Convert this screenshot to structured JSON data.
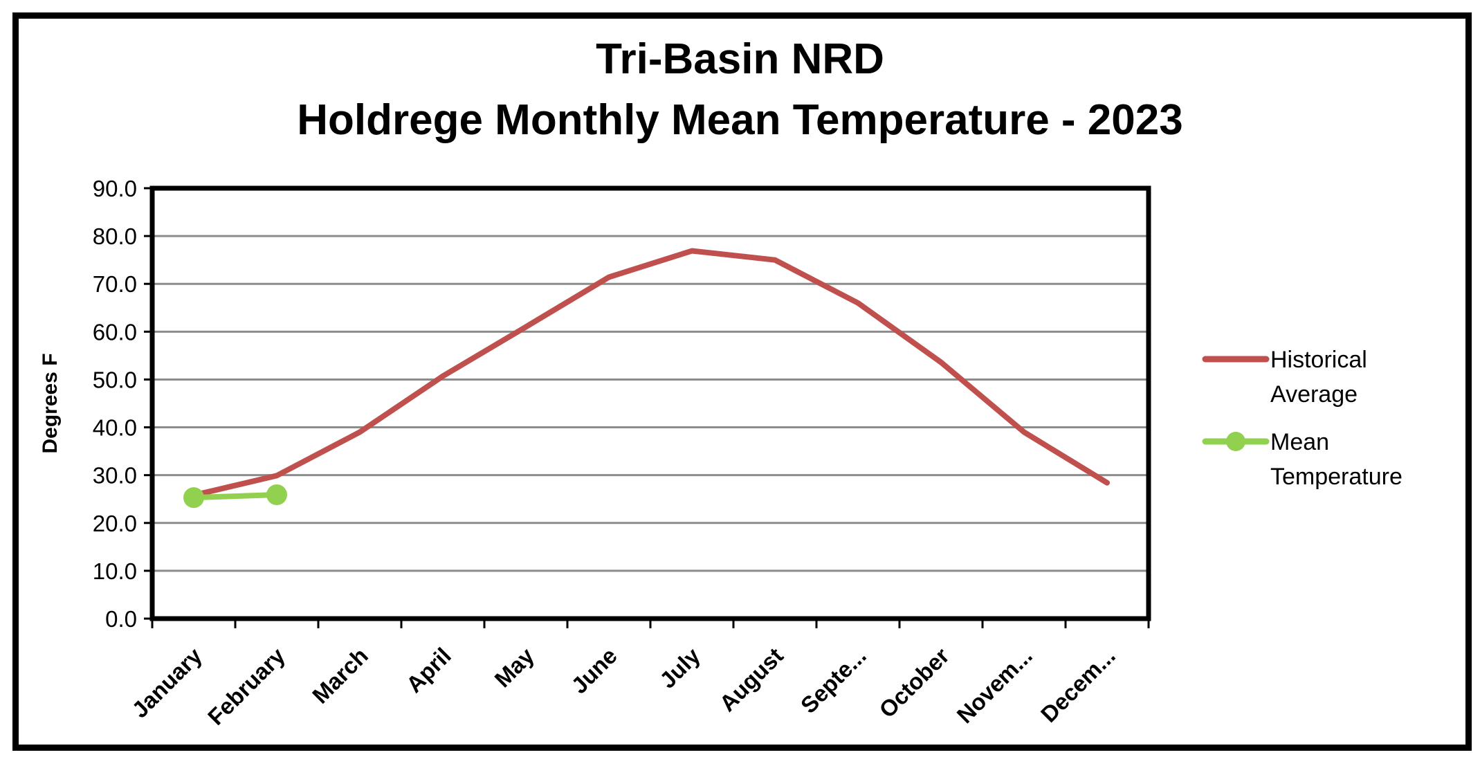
{
  "chart_data": {
    "type": "line",
    "title_line1": "Tri-Basin NRD",
    "title_line2": "Holdrege Monthly Mean Temperature - 2023",
    "xlabel": "",
    "ylabel": "Degrees F",
    "ylim": [
      0,
      90
    ],
    "yticks": [
      "0.0",
      "10.0",
      "20.0",
      "30.0",
      "40.0",
      "50.0",
      "60.0",
      "70.0",
      "80.0",
      "90.0"
    ],
    "categories": [
      "January",
      "February",
      "March",
      "April",
      "May",
      "June",
      "July",
      "August",
      "Septe...",
      "October",
      "Novem...",
      "Decem..."
    ],
    "grid": true,
    "legend_position": "right",
    "series": [
      {
        "name": "Historical Average",
        "color": "#c0504d",
        "marker": "none",
        "values": [
          25.8,
          29.9,
          39.0,
          50.7,
          61.0,
          71.4,
          76.9,
          75.0,
          66.0,
          53.6,
          39.0,
          28.4
        ]
      },
      {
        "name": "Mean Temperature",
        "color": "#92d050",
        "marker": "circle",
        "values": [
          25.3,
          25.9,
          null,
          null,
          null,
          null,
          null,
          null,
          null,
          null,
          null,
          null
        ]
      }
    ]
  },
  "legend": {
    "historical_line1": "Historical",
    "historical_line2": "Average",
    "mean_line1": "Mean",
    "mean_line2": "Temperature"
  }
}
